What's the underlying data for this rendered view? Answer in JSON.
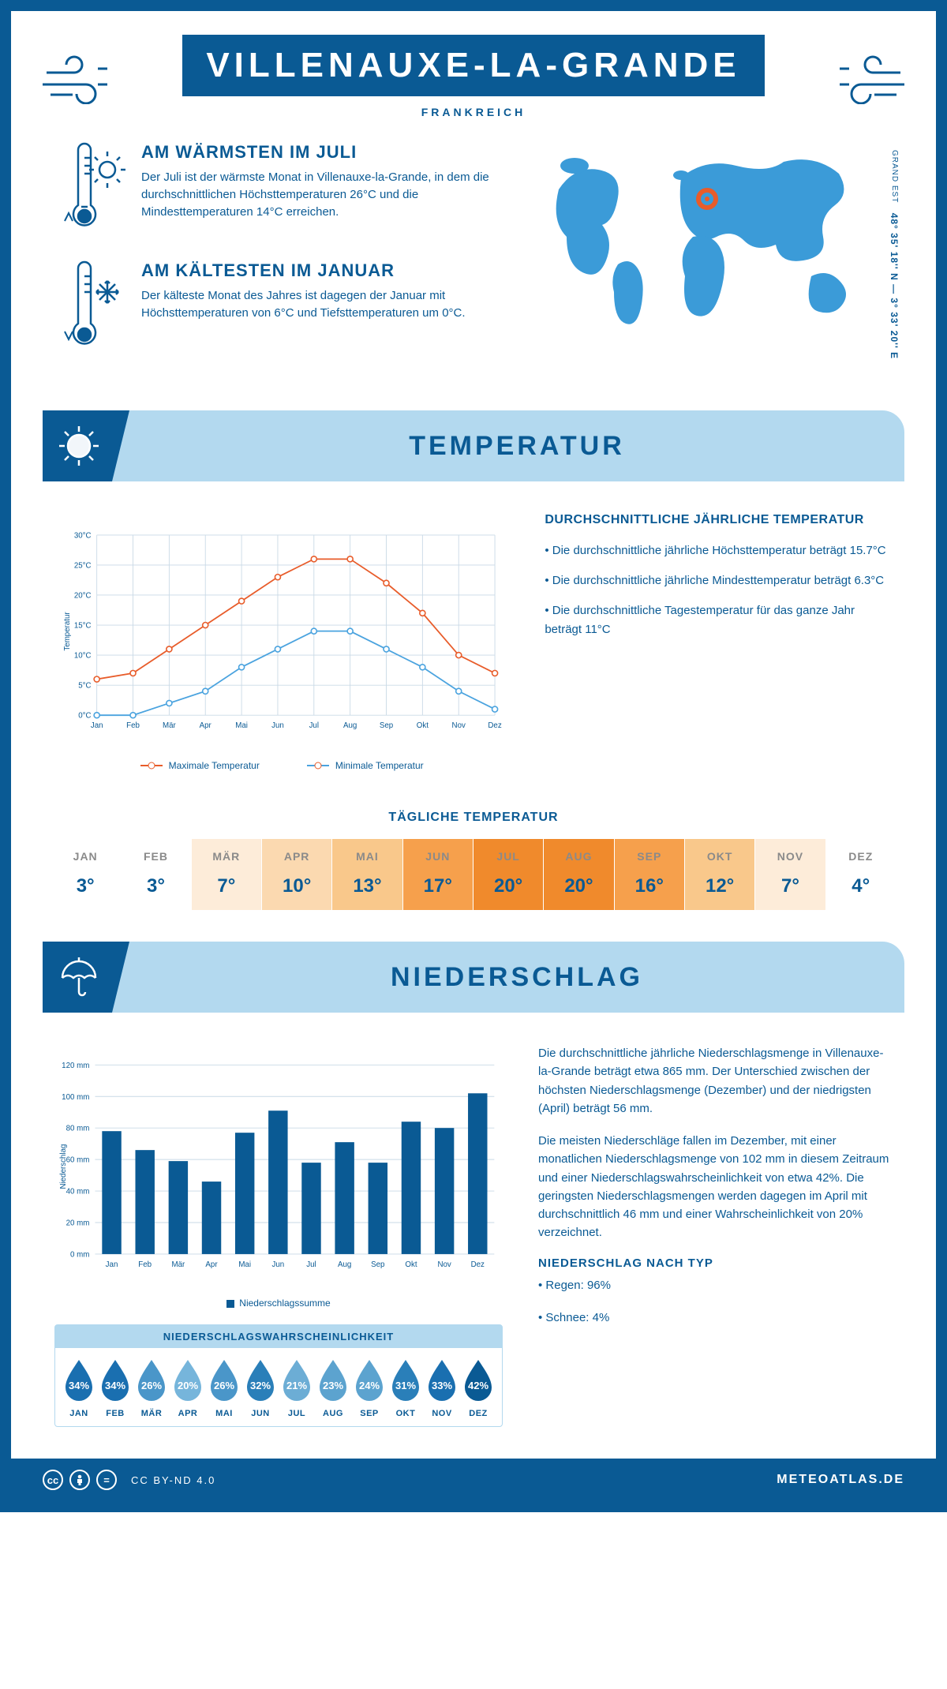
{
  "header": {
    "title": "VILLENAUXE-LA-GRANDE",
    "country": "FRANKREICH"
  },
  "coords": {
    "region": "GRAND EST",
    "lat_lon": "48° 35' 18'' N — 3° 33' 20'' E"
  },
  "facts": {
    "warm": {
      "title": "AM WÄRMSTEN IM JULI",
      "text": "Der Juli ist der wärmste Monat in Villenauxe-la-Grande, in dem die durchschnittlichen Höchsttemperaturen 26°C und die Mindesttemperaturen 14°C erreichen."
    },
    "cold": {
      "title": "AM KÄLTESTEN IM JANUAR",
      "text": "Der kälteste Monat des Jahres ist dagegen der Januar mit Höchsttemperaturen von 6°C und Tiefsttemperaturen um 0°C."
    }
  },
  "sections": {
    "temp": "TEMPERATUR",
    "precip": "NIEDERSCHLAG"
  },
  "temp_chart": {
    "type": "line",
    "months": [
      "Jan",
      "Feb",
      "Mär",
      "Apr",
      "Mai",
      "Jun",
      "Jul",
      "Aug",
      "Sep",
      "Okt",
      "Nov",
      "Dez"
    ],
    "max_series": [
      6,
      7,
      11,
      15,
      19,
      23,
      26,
      26,
      22,
      17,
      10,
      7
    ],
    "min_series": [
      0,
      0,
      2,
      4,
      8,
      11,
      14,
      14,
      11,
      8,
      4,
      1
    ],
    "max_color": "#e85c2a",
    "min_color": "#4aa3df",
    "grid_color": "#c9d9e6",
    "ylim": [
      0,
      30
    ],
    "ytick_step": 5,
    "ylabel": "Temperatur",
    "y_tick_suffix": "°C",
    "legend_max": "Maximale Temperatur",
    "legend_min": "Minimale Temperatur",
    "label_fontsize": 11,
    "line_width": 2,
    "marker": "circle-open"
  },
  "temp_text": {
    "title": "DURCHSCHNITTLICHE JÄHRLICHE TEMPERATUR",
    "b1": "• Die durchschnittliche jährliche Höchsttemperatur beträgt 15.7°C",
    "b2": "• Die durchschnittliche jährliche Mindesttemperatur beträgt 6.3°C",
    "b3": "• Die durchschnittliche Tagestemperatur für das ganze Jahr beträgt 11°C"
  },
  "daily_temp": {
    "title": "TÄGLICHE TEMPERATUR",
    "labels": [
      "JAN",
      "FEB",
      "MÄR",
      "APR",
      "MAI",
      "JUN",
      "JUL",
      "AUG",
      "SEP",
      "OKT",
      "NOV",
      "DEZ"
    ],
    "values": [
      "3°",
      "3°",
      "7°",
      "10°",
      "13°",
      "17°",
      "20°",
      "20°",
      "16°",
      "12°",
      "7°",
      "4°"
    ],
    "bg_colors": [
      "#ffffff",
      "#ffffff",
      "#fdecd9",
      "#fbd9b0",
      "#f9c88b",
      "#f6a04c",
      "#f08a2c",
      "#f08a2c",
      "#f6a04c",
      "#f9c88b",
      "#fdecd9",
      "#ffffff"
    ]
  },
  "precip_chart": {
    "type": "bar",
    "months": [
      "Jan",
      "Feb",
      "Mär",
      "Apr",
      "Mai",
      "Jun",
      "Jul",
      "Aug",
      "Sep",
      "Okt",
      "Nov",
      "Dez"
    ],
    "values": [
      78,
      66,
      59,
      46,
      77,
      91,
      58,
      71,
      58,
      84,
      80,
      102
    ],
    "bar_color": "#0a5a94",
    "grid_color": "#c9d9e6",
    "ylim": [
      0,
      120
    ],
    "ytick_step": 20,
    "ylabel": "Niederschlag",
    "y_tick_suffix": " mm",
    "legend": "Niederschlagssumme",
    "bar_width": 0.58
  },
  "precip_text": {
    "p1": "Die durchschnittliche jährliche Niederschlagsmenge in Villenauxe-la-Grande beträgt etwa 865 mm. Der Unterschied zwischen der höchsten Niederschlagsmenge (Dezember) und der niedrigsten (April) beträgt 56 mm.",
    "p2": "Die meisten Niederschläge fallen im Dezember, mit einer monatlichen Niederschlagsmenge von 102 mm in diesem Zeitraum und einer Niederschlagswahrscheinlichkeit von etwa 42%. Die geringsten Niederschlagsmengen werden dagegen im April mit durchschnittlich 46 mm und einer Wahrscheinlichkeit von 20% verzeichnet.",
    "type_title": "NIEDERSCHLAG NACH TYP",
    "type1": "• Regen: 96%",
    "type2": "• Schnee: 4%"
  },
  "prob": {
    "title": "NIEDERSCHLAGSWAHRSCHEINLICHKEIT",
    "months": [
      "JAN",
      "FEB",
      "MÄR",
      "APR",
      "MAI",
      "JUN",
      "JUL",
      "AUG",
      "SEP",
      "OKT",
      "NOV",
      "DEZ"
    ],
    "values": [
      "34%",
      "34%",
      "26%",
      "20%",
      "26%",
      "32%",
      "21%",
      "23%",
      "24%",
      "31%",
      "33%",
      "42%"
    ],
    "colors": [
      "#1a6fb0",
      "#1a6fb0",
      "#4a96c9",
      "#76b5db",
      "#4a96c9",
      "#2a7fb9",
      "#6cadd5",
      "#5ca3cf",
      "#5ca3cf",
      "#2a7fb9",
      "#1a6fb0",
      "#0a5a94"
    ]
  },
  "footer": {
    "license": "CC BY-ND 4.0",
    "brand": "METEOATLAS.DE"
  },
  "colors": {
    "primary": "#0a5a94",
    "light": "#b3d9ef",
    "accent_blue": "#3b9bd8"
  }
}
